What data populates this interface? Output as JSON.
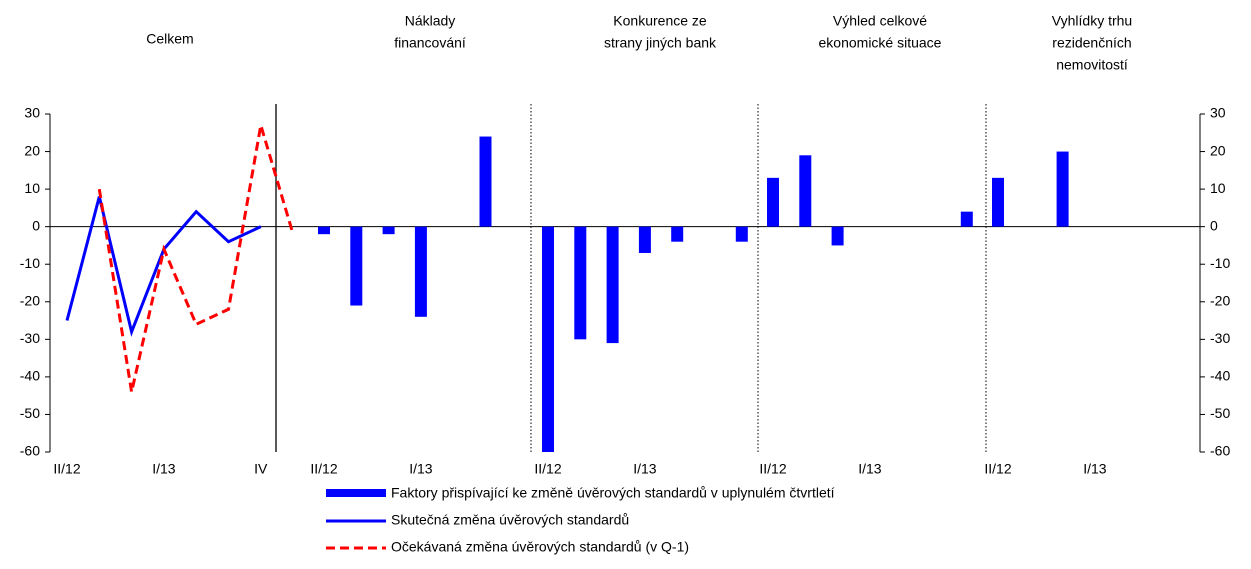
{
  "chart_data": [
    {
      "type": "line",
      "title": [
        "Celkem"
      ],
      "categories": [
        "II/12",
        null,
        null,
        "I/13",
        null,
        null,
        "IV",
        null
      ],
      "series": [
        {
          "name": "Skutečná změna úvěrových standardů",
          "color": "#0000ff",
          "dash": false,
          "values": [
            -25,
            8,
            -28,
            -6,
            4,
            -4,
            0,
            null
          ]
        },
        {
          "name": "Očekávaná změna úvěrových standardů (v Q-1)",
          "color": "#ff0000",
          "dash": true,
          "values": [
            null,
            10,
            -44,
            -6,
            -26,
            -22,
            27,
            -2
          ]
        }
      ],
      "ylim": [
        -60,
        30
      ],
      "yticks": [
        -60,
        -50,
        -40,
        -30,
        -20,
        -10,
        0,
        10,
        20,
        30
      ]
    },
    {
      "type": "bar",
      "title": [
        "Náklady",
        "financování"
      ],
      "categories": [
        "II/12",
        null,
        null,
        "I/13",
        null,
        null,
        null
      ],
      "values": [
        -2,
        -21,
        -2,
        -24,
        0,
        24,
        0
      ]
    },
    {
      "type": "bar",
      "title": [
        "Konkurence ze",
        "strany jiných bank"
      ],
      "categories": [
        "II/12",
        null,
        null,
        "I/13",
        null,
        null,
        null
      ],
      "values": [
        -60,
        -30,
        -31,
        -7,
        -4,
        0,
        -4
      ]
    },
    {
      "type": "bar",
      "title": [
        "Výhled celkové",
        "ekonomické situace"
      ],
      "categories": [
        "II/12",
        null,
        null,
        "I/13",
        null,
        null,
        null
      ],
      "values": [
        13,
        19,
        -5,
        0,
        0,
        0,
        4
      ]
    },
    {
      "type": "bar",
      "title": [
        "Vyhlídky trhu",
        "rezidenčních",
        "nemovitostí"
      ],
      "categories": [
        "II/12",
        null,
        null,
        "I/13",
        null,
        null,
        null
      ],
      "values": [
        13,
        0,
        20,
        0,
        0,
        0,
        0
      ]
    }
  ],
  "legend": {
    "name": "Faktory přispívající ke změně úvěrových standardů v uplynulém čtvrtletí",
    "color": "#0000ff"
  }
}
